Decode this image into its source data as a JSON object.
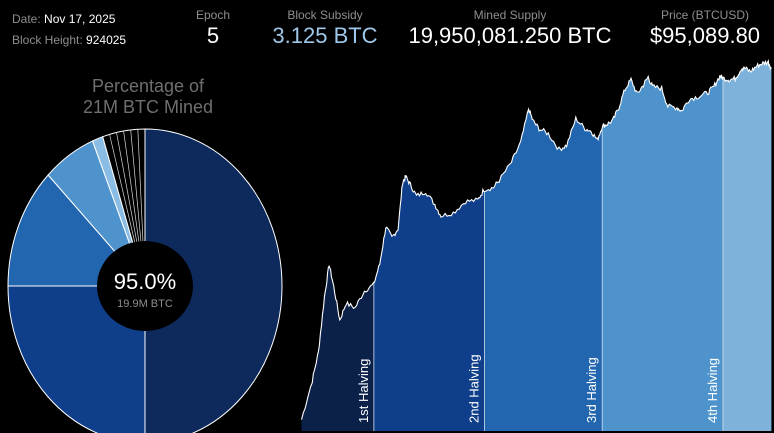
{
  "header": {
    "date_label": "Date:",
    "date_value": "Nov 17, 2025",
    "height_label": "Block Height:",
    "height_value": "924025",
    "stats": {
      "epoch": {
        "label": "Epoch",
        "value": "5"
      },
      "subsidy": {
        "label": "Block Subsidy",
        "value": "3.125 BTC"
      },
      "supply": {
        "label": "Mined Supply",
        "value": "19,950,081.250 BTC"
      },
      "price": {
        "label": "Price (BTCUSD)",
        "value": "$95,089.80"
      }
    }
  },
  "chart_data": [
    {
      "type": "pie",
      "title_lines": [
        "Percentage of",
        "21M BTC Mined"
      ],
      "center_value": "95.0%",
      "center_sub": "19.9M BTC",
      "slices": [
        {
          "epoch": 1,
          "value": 50.0,
          "color": "#0e2a5c"
        },
        {
          "epoch": 2,
          "value": 25.0,
          "color": "#0f3f8a"
        },
        {
          "epoch": 3,
          "value": 12.5,
          "color": "#2366b0"
        },
        {
          "epoch": 4,
          "value": 6.25,
          "color": "#4e93cc"
        },
        {
          "epoch": 5,
          "value": 1.25,
          "color": "#8bbde4"
        },
        {
          "epoch": 6,
          "value": 5.0,
          "color": "#000000"
        }
      ],
      "remaining_tick_dividers": 5
    },
    {
      "type": "area",
      "ylabel": "",
      "xlabel": "",
      "log_scale": true,
      "grid": false,
      "series_points": [
        [
          2010.55,
          0.05
        ],
        [
          2010.9,
          0.25
        ],
        [
          2011.1,
          0.8
        ],
        [
          2011.3,
          8
        ],
        [
          2011.45,
          30
        ],
        [
          2011.6,
          12
        ],
        [
          2011.8,
          3
        ],
        [
          2012.0,
          6
        ],
        [
          2012.3,
          5
        ],
        [
          2012.6,
          10
        ],
        [
          2012.9,
          13
        ],
        [
          2013.1,
          30
        ],
        [
          2013.3,
          140
        ],
        [
          2013.5,
          90
        ],
        [
          2013.7,
          130
        ],
        [
          2013.85,
          900
        ],
        [
          2013.95,
          1100
        ],
        [
          2014.1,
          800
        ],
        [
          2014.3,
          500
        ],
        [
          2014.6,
          600
        ],
        [
          2014.9,
          350
        ],
        [
          2015.1,
          220
        ],
        [
          2015.5,
          250
        ],
        [
          2015.9,
          400
        ],
        [
          2016.3,
          420
        ],
        [
          2016.5,
          650
        ],
        [
          2016.8,
          700
        ],
        [
          2017.0,
          950
        ],
        [
          2017.4,
          2000
        ],
        [
          2017.7,
          4500
        ],
        [
          2017.96,
          18000
        ],
        [
          2018.1,
          11000
        ],
        [
          2018.3,
          8000
        ],
        [
          2018.6,
          6500
        ],
        [
          2018.95,
          3400
        ],
        [
          2019.2,
          4000
        ],
        [
          2019.5,
          12000
        ],
        [
          2019.8,
          8000
        ],
        [
          2020.0,
          7200
        ],
        [
          2020.2,
          5000
        ],
        [
          2020.36,
          8800
        ],
        [
          2020.5,
          9500
        ],
        [
          2020.7,
          11000
        ],
        [
          2020.9,
          19000
        ],
        [
          2021.1,
          40000
        ],
        [
          2021.3,
          60000
        ],
        [
          2021.5,
          33000
        ],
        [
          2021.7,
          48000
        ],
        [
          2021.86,
          67000
        ],
        [
          2022.0,
          45000
        ],
        [
          2022.3,
          42000
        ],
        [
          2022.5,
          20000
        ],
        [
          2022.8,
          19000
        ],
        [
          2022.95,
          16500
        ],
        [
          2023.2,
          27000
        ],
        [
          2023.5,
          30000
        ],
        [
          2023.8,
          35000
        ],
        [
          2024.0,
          45000
        ],
        [
          2024.2,
          70000
        ],
        [
          2024.3,
          64000
        ],
        [
          2024.5,
          60000
        ],
        [
          2024.7,
          63000
        ],
        [
          2024.9,
          95000
        ],
        [
          2025.0,
          97000
        ],
        [
          2025.2,
          84000
        ],
        [
          2025.4,
          105000
        ],
        [
          2025.6,
          118000
        ],
        [
          2025.78,
          124000
        ],
        [
          2025.88,
          95090
        ]
      ],
      "halvings": [
        {
          "label": "1st Halving",
          "x": 2012.91,
          "color": "#0e2a5c"
        },
        {
          "label": "2nd Halving",
          "x": 2016.52,
          "color": "#0f3f8a"
        },
        {
          "label": "3rd Halving",
          "x": 2020.36,
          "color": "#2366b0"
        },
        {
          "label": "4th Halving",
          "x": 2024.3,
          "color": "#4e93cc"
        }
      ],
      "first_era_color": "#0b214a",
      "last_era_color": "#7fb2da",
      "x_range": [
        2010.5,
        2025.9
      ],
      "y_range": [
        0.04,
        135000
      ]
    }
  ]
}
